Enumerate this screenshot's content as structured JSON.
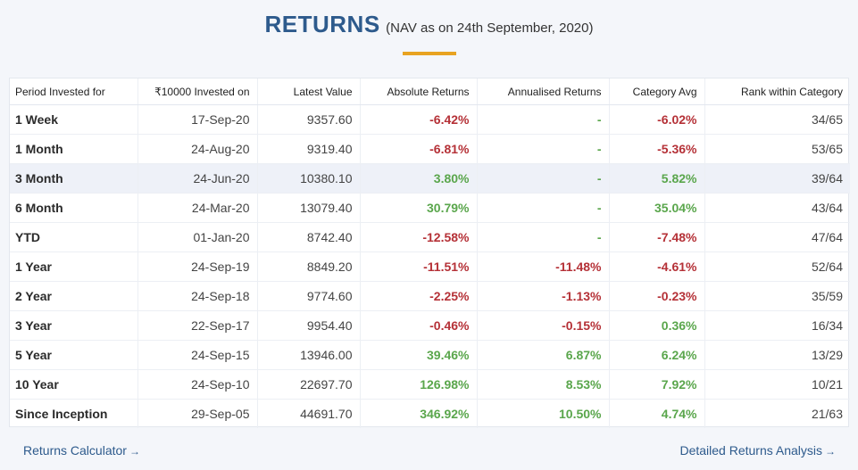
{
  "header": {
    "title": "RETURNS",
    "subtitle": "(NAV as on 24th September, 2020)"
  },
  "table": {
    "columns": [
      "Period Invested for",
      "₹10000 Invested on",
      "Latest Value",
      "Absolute Returns",
      "Annualised Returns",
      "Category Avg",
      "Rank within Category"
    ],
    "rows": [
      {
        "period": "1 Week",
        "invested_on": "17-Sep-20",
        "latest_value": "9357.60",
        "absolute": "-6.42%",
        "annualised": "-",
        "category_avg": "-6.02%",
        "rank": "34/65"
      },
      {
        "period": "1 Month",
        "invested_on": "24-Aug-20",
        "latest_value": "9319.40",
        "absolute": "-6.81%",
        "annualised": "-",
        "category_avg": "-5.36%",
        "rank": "53/65"
      },
      {
        "period": "3 Month",
        "invested_on": "24-Jun-20",
        "latest_value": "10380.10",
        "absolute": "3.80%",
        "annualised": "-",
        "category_avg": "5.82%",
        "rank": "39/64"
      },
      {
        "period": "6 Month",
        "invested_on": "24-Mar-20",
        "latest_value": "13079.40",
        "absolute": "30.79%",
        "annualised": "-",
        "category_avg": "35.04%",
        "rank": "43/64"
      },
      {
        "period": "YTD",
        "invested_on": "01-Jan-20",
        "latest_value": "8742.40",
        "absolute": "-12.58%",
        "annualised": "-",
        "category_avg": "-7.48%",
        "rank": "47/64"
      },
      {
        "period": "1 Year",
        "invested_on": "24-Sep-19",
        "latest_value": "8849.20",
        "absolute": "-11.51%",
        "annualised": "-11.48%",
        "category_avg": "-4.61%",
        "rank": "52/64"
      },
      {
        "period": "2 Year",
        "invested_on": "24-Sep-18",
        "latest_value": "9774.60",
        "absolute": "-2.25%",
        "annualised": "-1.13%",
        "category_avg": "-0.23%",
        "rank": "35/59"
      },
      {
        "period": "3 Year",
        "invested_on": "22-Sep-17",
        "latest_value": "9954.40",
        "absolute": "-0.46%",
        "annualised": "-0.15%",
        "category_avg": "0.36%",
        "rank": "16/34"
      },
      {
        "period": "5 Year",
        "invested_on": "24-Sep-15",
        "latest_value": "13946.00",
        "absolute": "39.46%",
        "annualised": "6.87%",
        "category_avg": "6.24%",
        "rank": "13/29"
      },
      {
        "period": "10 Year",
        "invested_on": "24-Sep-10",
        "latest_value": "22697.70",
        "absolute": "126.98%",
        "annualised": "8.53%",
        "category_avg": "7.92%",
        "rank": "10/21"
      },
      {
        "period": "Since Inception",
        "invested_on": "29-Sep-05",
        "latest_value": "44691.70",
        "absolute": "346.92%",
        "annualised": "10.50%",
        "category_avg": "4.74%",
        "rank": "21/63"
      }
    ]
  },
  "links": {
    "calculator": "Returns Calculator",
    "analysis": "Detailed Returns Analysis"
  },
  "icons": {
    "arrow": "→"
  },
  "colors": {
    "title": "#2d5a8c",
    "accent": "#e8a321",
    "negative": "#b53137",
    "positive": "#5aa64c",
    "highlight_row": "#eef1f8"
  }
}
